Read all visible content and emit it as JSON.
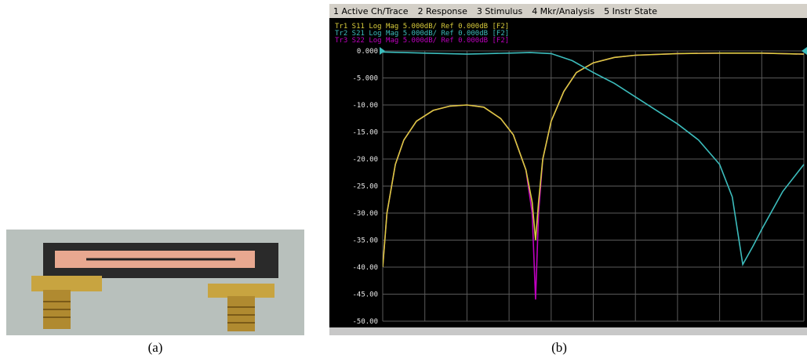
{
  "captions": [
    "(a)",
    "(b)"
  ],
  "menu": [
    "1 Active Ch/Trace",
    "2 Response",
    "3 Stimulus",
    "4 Mkr/Analysis",
    "5 Instr State"
  ],
  "chart_data": {
    "type": "line",
    "xlim": [
      0,
      10
    ],
    "ylim": [
      -50,
      0
    ],
    "grid": true,
    "yticks": [
      {
        "value": 0,
        "label": "0.000"
      },
      {
        "value": -5,
        "label": "-5.000"
      },
      {
        "value": -10,
        "label": "-10.00"
      },
      {
        "value": -15,
        "label": "-15.00"
      },
      {
        "value": -20,
        "label": "-20.00"
      },
      {
        "value": -25,
        "label": "-25.00"
      },
      {
        "value": -30,
        "label": "-30.00"
      },
      {
        "value": -35,
        "label": "-35.00"
      },
      {
        "value": -40,
        "label": "-40.00"
      },
      {
        "value": -45,
        "label": "-45.00"
      },
      {
        "value": -50,
        "label": "-50.00"
      }
    ],
    "xticks": [
      0,
      1,
      2,
      3,
      4,
      5,
      6,
      7,
      8,
      9,
      10
    ],
    "series": [
      {
        "name": "Tr1 S11 Log Mag 5.000dB/ Ref 0.000dB [F2]",
        "color": "#d8cc3c",
        "x": [
          0,
          0.1,
          0.3,
          0.5,
          0.8,
          1.2,
          1.6,
          2.0,
          2.4,
          2.8,
          3.1,
          3.4,
          3.55,
          3.63,
          3.7,
          3.8,
          4.0,
          4.3,
          4.6,
          5.0,
          5.5,
          6,
          7,
          8,
          9,
          10
        ],
        "values": [
          -40,
          -30,
          -21,
          -16.5,
          -13,
          -11,
          -10.2,
          -10,
          -10.4,
          -12.5,
          -15.5,
          -22,
          -28,
          -35,
          -28,
          -20,
          -13,
          -7.5,
          -4,
          -2.2,
          -1.2,
          -0.8,
          -0.5,
          -0.4,
          -0.4,
          -0.6
        ]
      },
      {
        "name": "Tr2 S21 Log Mag 5.000dB/ Ref 0.000dB [F2]",
        "color": "#3cbcbc",
        "x": [
          0,
          0.5,
          1,
          1.5,
          2,
          2.5,
          3,
          3.5,
          4,
          4.5,
          5,
          5.5,
          6,
          6.5,
          7,
          7.5,
          8,
          8.3,
          8.55,
          8.8,
          9,
          9.5,
          10
        ],
        "values": [
          -0.2,
          -0.3,
          -0.4,
          -0.5,
          -0.6,
          -0.5,
          -0.4,
          -0.3,
          -0.5,
          -1.8,
          -4,
          -6,
          -8.5,
          -11,
          -13.5,
          -16.5,
          -21,
          -27,
          -39.5,
          -36,
          -33,
          -26,
          -21
        ]
      },
      {
        "name": "Tr3 S22 Log Mag 5.000dB/ Ref 0.000dB [F2]",
        "color": "#c000c0",
        "x": [
          0,
          0.1,
          0.3,
          0.5,
          0.8,
          1.2,
          1.6,
          2.0,
          2.4,
          2.8,
          3.1,
          3.4,
          3.55,
          3.63,
          3.7,
          3.8,
          4.0,
          4.3,
          4.6,
          5.0,
          5.5,
          6,
          7,
          8,
          9,
          10
        ],
        "values": [
          -40,
          -30,
          -21,
          -16.5,
          -13,
          -11,
          -10.2,
          -10,
          -10.4,
          -12.5,
          -15.5,
          -22,
          -30,
          -46,
          -30,
          -20,
          -13,
          -7.5,
          -4,
          -2.2,
          -1.2,
          -0.8,
          -0.5,
          -0.4,
          -0.4,
          -0.6
        ]
      }
    ]
  }
}
